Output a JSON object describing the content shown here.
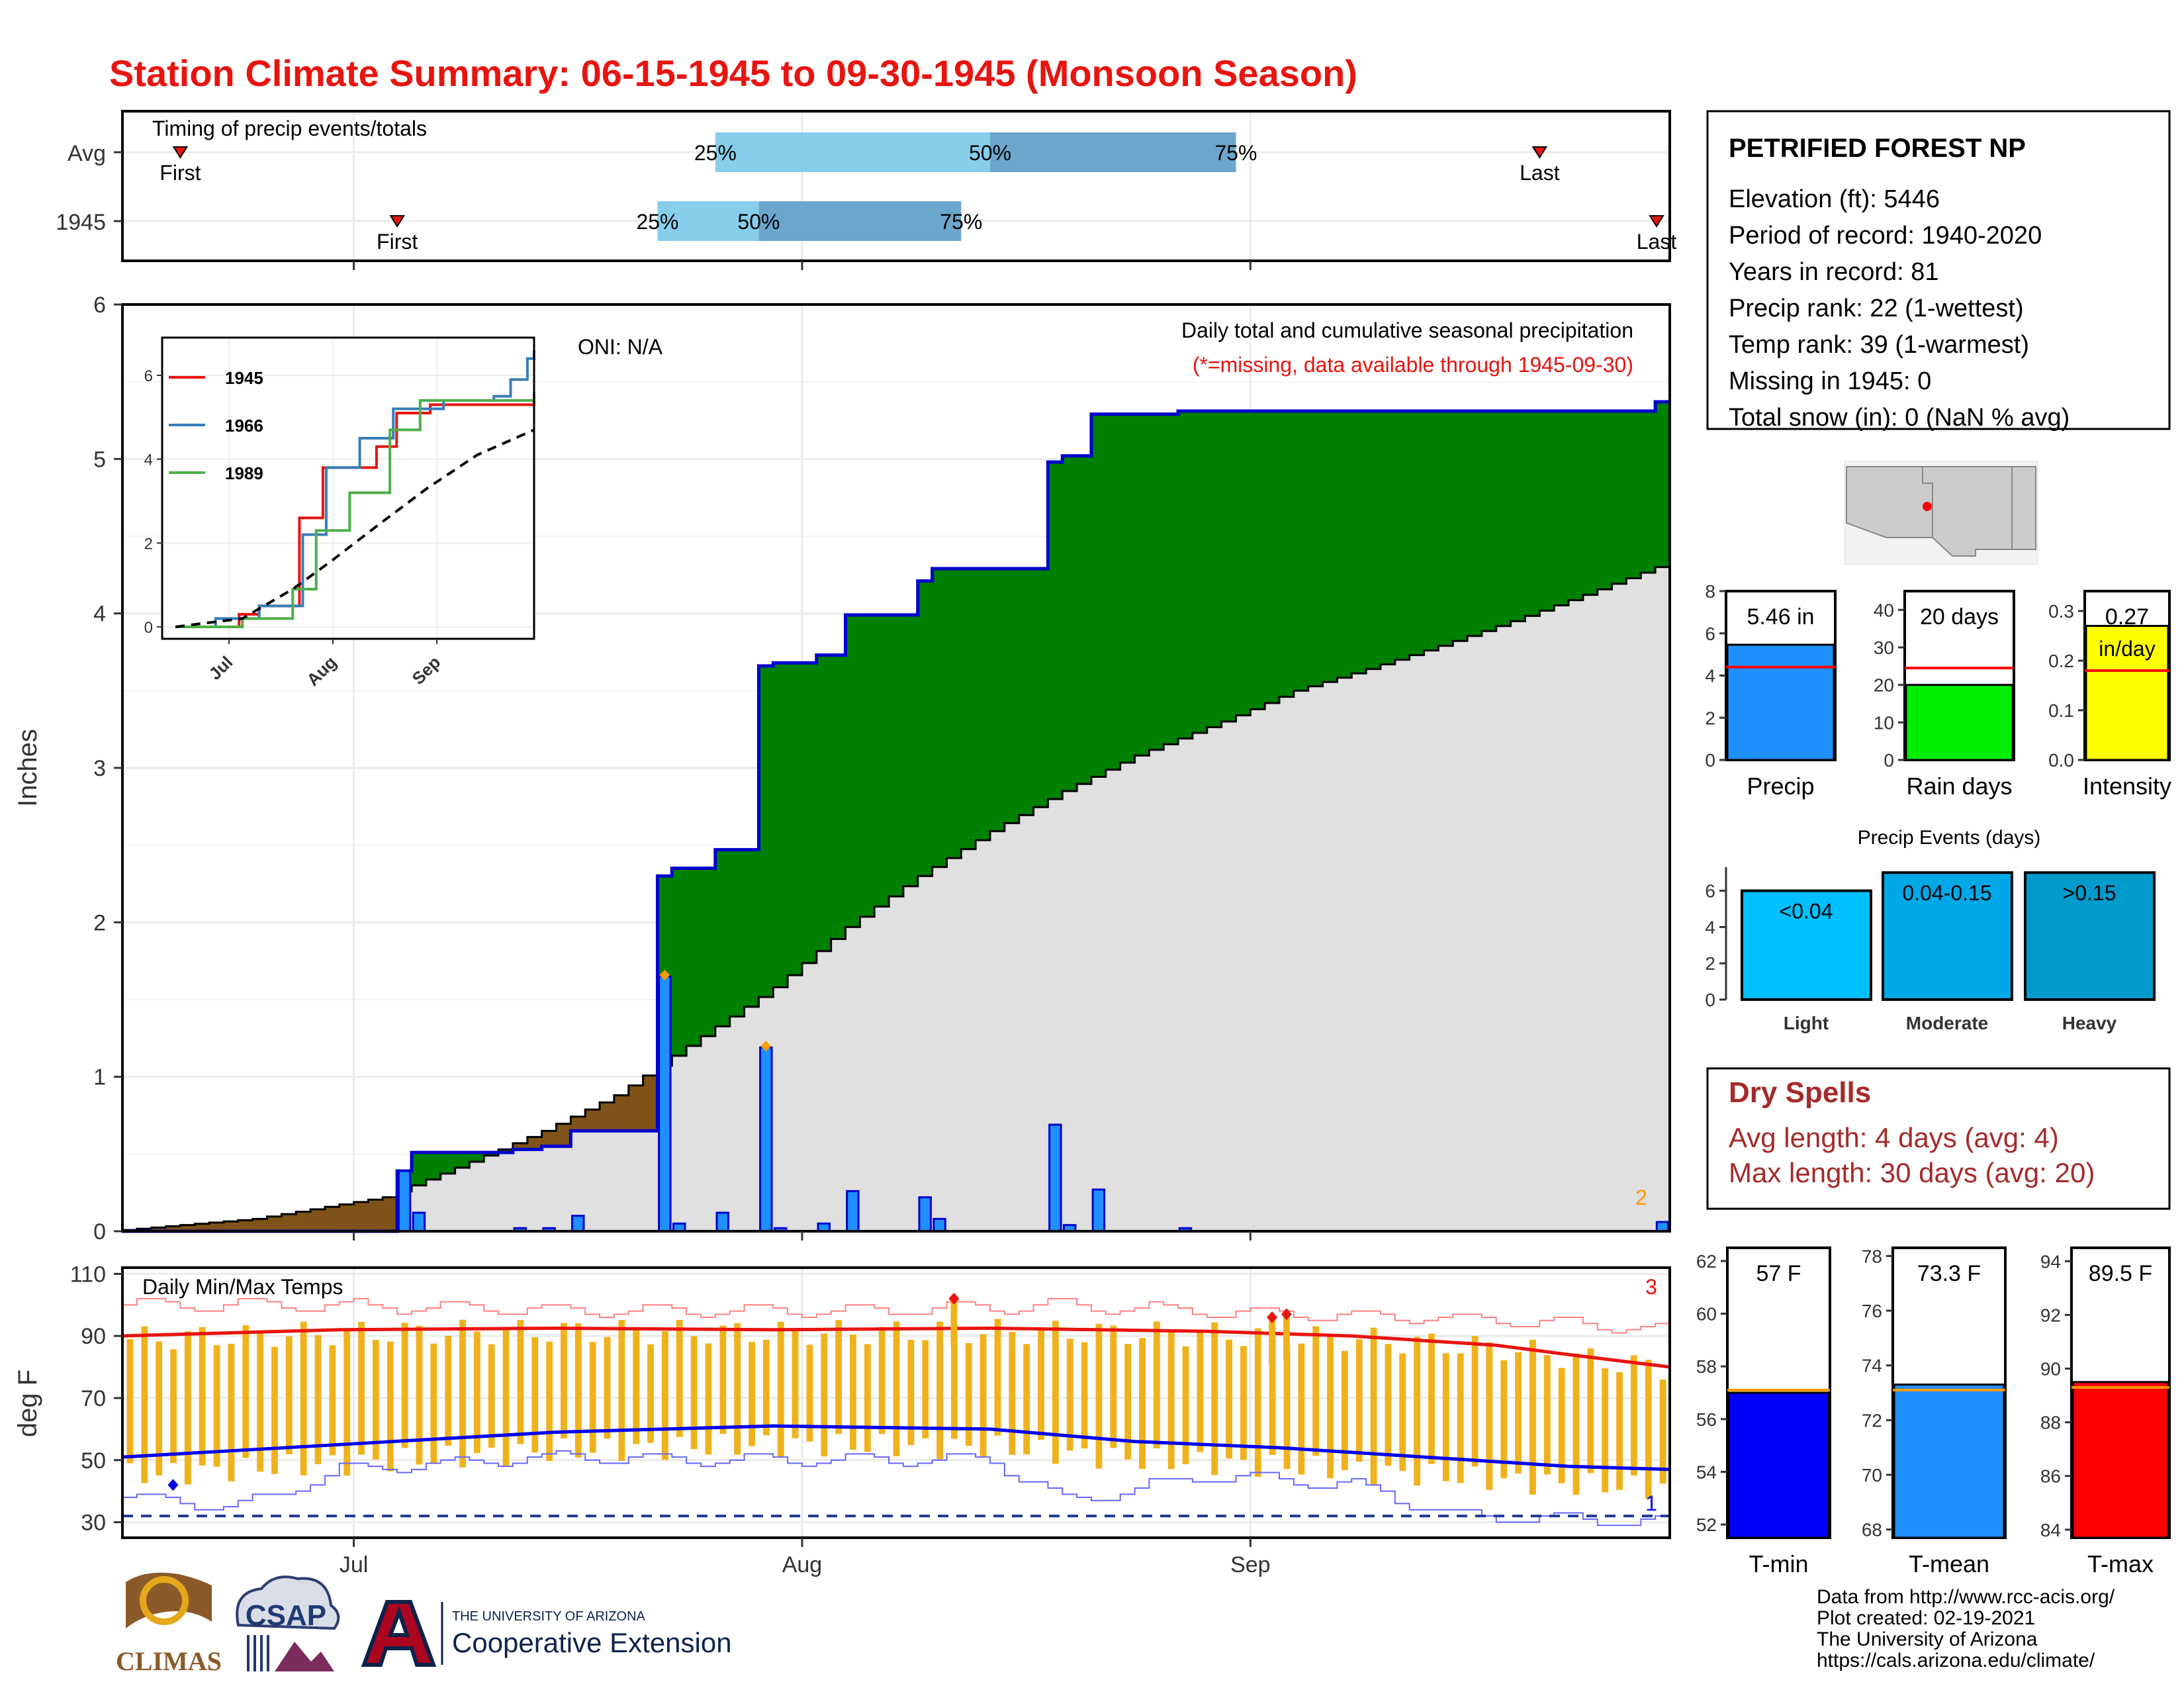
{
  "title": "Station Climate Summary: 06-15-1945 to 09-30-1945 (Monsoon Season)",
  "timing": {
    "label": "Timing of precip events/totals",
    "rows": [
      {
        "name": "Avg",
        "first_date": "1945-06-19",
        "last_date": "1945-09-21",
        "q25_date": "1945-07-26",
        "q50_date": "1945-08-14",
        "q75_date": "1945-08-31"
      },
      {
        "name": "1945",
        "first_date": "1945-07-04",
        "last_date": "1945-09-30",
        "q25_date": "1945-07-22",
        "q50_date": "1945-07-29",
        "q75_date": "1945-08-12"
      }
    ],
    "first_label": "First",
    "last_label": "Last",
    "q_labels": [
      "25%",
      "50%",
      "75%"
    ],
    "colors": {
      "lower": "#87ceeb",
      "upper": "#6ca6cd",
      "marker": "#e8140f"
    }
  },
  "main": {
    "ylabel": "Inches",
    "annotation_oni": "ONI: N/A",
    "annotation_title": "Daily total and cumulative seasonal precipitation",
    "annotation_missing": "(*=missing, data available through 1945-09-30)",
    "corner_count": "2",
    "x_ticks": [
      "Jul",
      "Aug",
      "Sep"
    ],
    "y_ticks": [
      "0",
      "1",
      "2",
      "3",
      "4",
      "5",
      "6"
    ],
    "colors": {
      "wet": "#008000",
      "dry": "#7f5217",
      "normal": "#e0e0e0",
      "bar": "#1e90ff",
      "bar_edge": "#0000cd",
      "marker": "#ff9900"
    }
  },
  "inset": {
    "legend": [
      "1945",
      "1966",
      "1989"
    ],
    "colors": [
      "#e8140f",
      "#377eb8",
      "#4daf4a"
    ],
    "x_ticks": [
      "Jul",
      "Aug",
      "Sep"
    ],
    "y_ticks": [
      "0",
      "2",
      "4",
      "6"
    ]
  },
  "temps": {
    "label": "Daily Min/Max Temps",
    "ylabel": "deg F",
    "y_ticks": [
      "30",
      "50",
      "70",
      "90",
      "110"
    ],
    "x_ticks": [
      "Jul",
      "Aug",
      "Sep"
    ],
    "count_high": "3",
    "count_low": "1",
    "colors": {
      "range": "#f0b21c",
      "avg_max": "#e8140f",
      "avg_min": "#0000ee",
      "rec": "#ff8080",
      "rec_low": "#6666ff"
    }
  },
  "info": {
    "station": "PETRIFIED FOREST NP",
    "lines": [
      "Elevation (ft): 5446",
      "Period of record: 1940-2020",
      "Years in record: 81",
      "Precip rank: 22 (1-wettest)",
      "Temp rank: 39 (1-warmest)",
      "Missing in 1945: 0",
      "Total snow (in): 0 (NaN % avg)"
    ]
  },
  "precip_stats": [
    {
      "name": "Precip",
      "value": 5.46,
      "value_label": "5.46 in",
      "avg": 4.4,
      "ylim": [
        0,
        8
      ],
      "ticks": [
        "0",
        "2",
        "4",
        "6",
        "8"
      ],
      "color": "#1e90ff"
    },
    {
      "name": "Rain days",
      "value": 20,
      "value_label": "20 days",
      "avg": 24.5,
      "ylim": [
        0,
        45
      ],
      "ticks": [
        "0",
        "10",
        "20",
        "30",
        "40"
      ],
      "color": "#00ee00"
    },
    {
      "name": "Intensity",
      "value": 0.27,
      "value_label": "0.27",
      "value_label2": "in/day",
      "avg": 0.18,
      "ylim": [
        0,
        0.34
      ],
      "ticks": [
        "0.0",
        "0.1",
        "0.2",
        "0.3"
      ],
      "color": "#ffff00"
    }
  ],
  "events": {
    "title": "Precip Events (days)",
    "bars": [
      {
        "name": "Light",
        "label": "<0.04",
        "value": 6,
        "color": "#00bfff"
      },
      {
        "name": "Moderate",
        "label": "0.04-0.15",
        "value": 7,
        "color": "#00a8e8"
      },
      {
        "name": "Heavy",
        "label": ">0.15",
        "value": 7,
        "color": "#009acd"
      }
    ],
    "ticks": [
      "0",
      "2",
      "4",
      "6"
    ]
  },
  "dry_spells": {
    "title": "Dry Spells",
    "avg_line": "Avg length: 4 days (avg: 4)",
    "max_line": "Max length: 30 days (avg: 20)"
  },
  "temp_stats": [
    {
      "name": "T-min",
      "value": 57,
      "value_label": "57 F",
      "avg": 57.1,
      "ylim": [
        51.5,
        62.5
      ],
      "ticks": [
        "52",
        "54",
        "56",
        "58",
        "60",
        "62"
      ],
      "color": "#0000ff"
    },
    {
      "name": "T-mean",
      "value": 73.3,
      "value_label": "73.3 F",
      "avg": 73.1,
      "ylim": [
        67.7,
        78.3
      ],
      "ticks": [
        "68",
        "70",
        "72",
        "74",
        "76",
        "78"
      ],
      "color": "#1e90ff"
    },
    {
      "name": "T-max",
      "value": 89.5,
      "value_label": "89.5 F",
      "avg": 89.3,
      "ylim": [
        83.7,
        94.5
      ],
      "ticks": [
        "84",
        "86",
        "88",
        "90",
        "92",
        "94"
      ],
      "color": "#ff0000"
    }
  ],
  "credits": {
    "lines": [
      "Data from http://www.rcc-acis.org/",
      "Plot created: 02-19-2021",
      "The University of Arizona",
      "https://cals.arizona.edu/climate/"
    ],
    "logo_climas": "CLIMAS",
    "logo_csap": "CSAP",
    "logo_ua_small": "THE UNIVERSITY OF ARIZONA",
    "logo_ua_big": "Cooperative Extension"
  },
  "chart_data": {
    "type": "area",
    "xlabel": "",
    "ylabel": "Inches",
    "x_start": "1945-06-15",
    "x_end": "1945-09-30",
    "ylim": [
      0,
      6
    ],
    "daily_precip_1945": [
      {
        "date": "1945-07-04",
        "value": 0.39
      },
      {
        "date": "1945-07-05",
        "value": 0.12
      },
      {
        "date": "1945-07-12",
        "value": 0.02
      },
      {
        "date": "1945-07-14",
        "value": 0.02
      },
      {
        "date": "1945-07-16",
        "value": 0.1
      },
      {
        "date": "1945-07-22",
        "value": 1.65
      },
      {
        "date": "1945-07-23",
        "value": 0.05
      },
      {
        "date": "1945-07-26",
        "value": 0.12
      },
      {
        "date": "1945-07-29",
        "value": 1.19
      },
      {
        "date": "1945-07-30",
        "value": 0.02
      },
      {
        "date": "1945-08-02",
        "value": 0.05
      },
      {
        "date": "1945-08-04",
        "value": 0.26
      },
      {
        "date": "1945-08-09",
        "value": 0.22
      },
      {
        "date": "1945-08-10",
        "value": 0.08
      },
      {
        "date": "1945-08-18",
        "value": 0.69
      },
      {
        "date": "1945-08-19",
        "value": 0.04
      },
      {
        "date": "1945-08-21",
        "value": 0.27
      },
      {
        "date": "1945-08-27",
        "value": 0.02
      },
      {
        "date": "1945-09-29",
        "value": 0.06
      }
    ],
    "average_cumulative": [
      {
        "date": "1945-06-15",
        "value": 0.0
      },
      {
        "date": "1945-06-25",
        "value": 0.08
      },
      {
        "date": "1945-07-04",
        "value": 0.22
      },
      {
        "date": "1945-07-10",
        "value": 0.45
      },
      {
        "date": "1945-07-15",
        "value": 0.65
      },
      {
        "date": "1945-07-20",
        "value": 0.88
      },
      {
        "date": "1945-07-25",
        "value": 1.2
      },
      {
        "date": "1945-07-31",
        "value": 1.58
      },
      {
        "date": "1945-08-05",
        "value": 1.97
      },
      {
        "date": "1945-08-10",
        "value": 2.3
      },
      {
        "date": "1945-08-15",
        "value": 2.59
      },
      {
        "date": "1945-08-20",
        "value": 2.85
      },
      {
        "date": "1945-08-25",
        "value": 3.08
      },
      {
        "date": "1945-08-31",
        "value": 3.3
      },
      {
        "date": "1945-09-05",
        "value": 3.5
      },
      {
        "date": "1945-09-10",
        "value": 3.64
      },
      {
        "date": "1945-09-15",
        "value": 3.79
      },
      {
        "date": "1945-09-20",
        "value": 3.95
      },
      {
        "date": "1945-09-25",
        "value": 4.12
      },
      {
        "date": "1945-09-30",
        "value": 4.3
      }
    ],
    "inset_series": [
      {
        "name": "1945",
        "points": [
          [
            0,
            0
          ],
          [
            19,
            0.3
          ],
          [
            25,
            0.5
          ],
          [
            37,
            2.6
          ],
          [
            44,
            3.8
          ],
          [
            60,
            4.3
          ],
          [
            66,
            5.1
          ],
          [
            76,
            5.3
          ],
          [
            107,
            5.46
          ]
        ]
      },
      {
        "name": "1966",
        "points": [
          [
            0,
            0
          ],
          [
            12,
            0.2
          ],
          [
            25,
            0.5
          ],
          [
            38,
            2.2
          ],
          [
            45,
            3.8
          ],
          [
            55,
            4.5
          ],
          [
            65,
            5.2
          ],
          [
            80,
            5.4
          ],
          [
            95,
            5.5
          ],
          [
            100,
            5.9
          ],
          [
            105,
            6.4
          ],
          [
            107,
            6.6
          ]
        ]
      },
      {
        "name": "1989",
        "points": [
          [
            0,
            0
          ],
          [
            20,
            0.2
          ],
          [
            35,
            0.9
          ],
          [
            42,
            2.3
          ],
          [
            52,
            3.2
          ],
          [
            64,
            4.7
          ],
          [
            73,
            5.4
          ],
          [
            107,
            5.6
          ]
        ]
      },
      {
        "name": "average",
        "points": [
          [
            0,
            0
          ],
          [
            20,
            0.2
          ],
          [
            35,
            0.9
          ],
          [
            47,
            1.6
          ],
          [
            60,
            2.4
          ],
          [
            75,
            3.3
          ],
          [
            90,
            4.1
          ],
          [
            107,
            4.7
          ]
        ]
      }
    ],
    "temps": {
      "type": "bar",
      "ylabel": "deg F",
      "ylim": [
        25,
        112
      ],
      "avg_max": [
        [
          0,
          90
        ],
        [
          15,
          92
        ],
        [
          30,
          92.5
        ],
        [
          45,
          92
        ],
        [
          60,
          92.5
        ],
        [
          75,
          91.5
        ],
        [
          85,
          90
        ],
        [
          95,
          87
        ],
        [
          100,
          84
        ],
        [
          107,
          80
        ]
      ],
      "avg_min": [
        [
          0,
          51
        ],
        [
          15,
          55
        ],
        [
          30,
          59
        ],
        [
          45,
          61
        ],
        [
          60,
          60
        ],
        [
          70,
          56
        ],
        [
          80,
          54
        ],
        [
          90,
          51
        ],
        [
          100,
          48
        ],
        [
          107,
          47
        ]
      ],
      "record_high": [
        [
          0,
          100
        ],
        [
          10,
          100
        ],
        [
          25,
          99
        ],
        [
          35,
          98
        ],
        [
          50,
          98
        ],
        [
          65,
          100
        ],
        [
          80,
          97
        ],
        [
          90,
          96
        ],
        [
          100,
          94
        ],
        [
          107,
          92
        ]
      ],
      "record_low": [
        [
          0,
          38
        ],
        [
          8,
          35
        ],
        [
          15,
          47
        ],
        [
          30,
          51
        ],
        [
          45,
          50
        ],
        [
          60,
          50
        ],
        [
          65,
          37
        ],
        [
          75,
          45
        ],
        [
          85,
          42
        ],
        [
          92,
          32
        ],
        [
          100,
          31
        ],
        [
          107,
          30
        ]
      ],
      "daily_max_highlights": [
        {
          "day": 57,
          "value": 102
        },
        {
          "day": 79,
          "value": 96
        },
        {
          "day": 80,
          "value": 97
        }
      ],
      "daily_min_highlight": {
        "day": 3,
        "value": 42
      },
      "freeze_line": 32
    }
  }
}
